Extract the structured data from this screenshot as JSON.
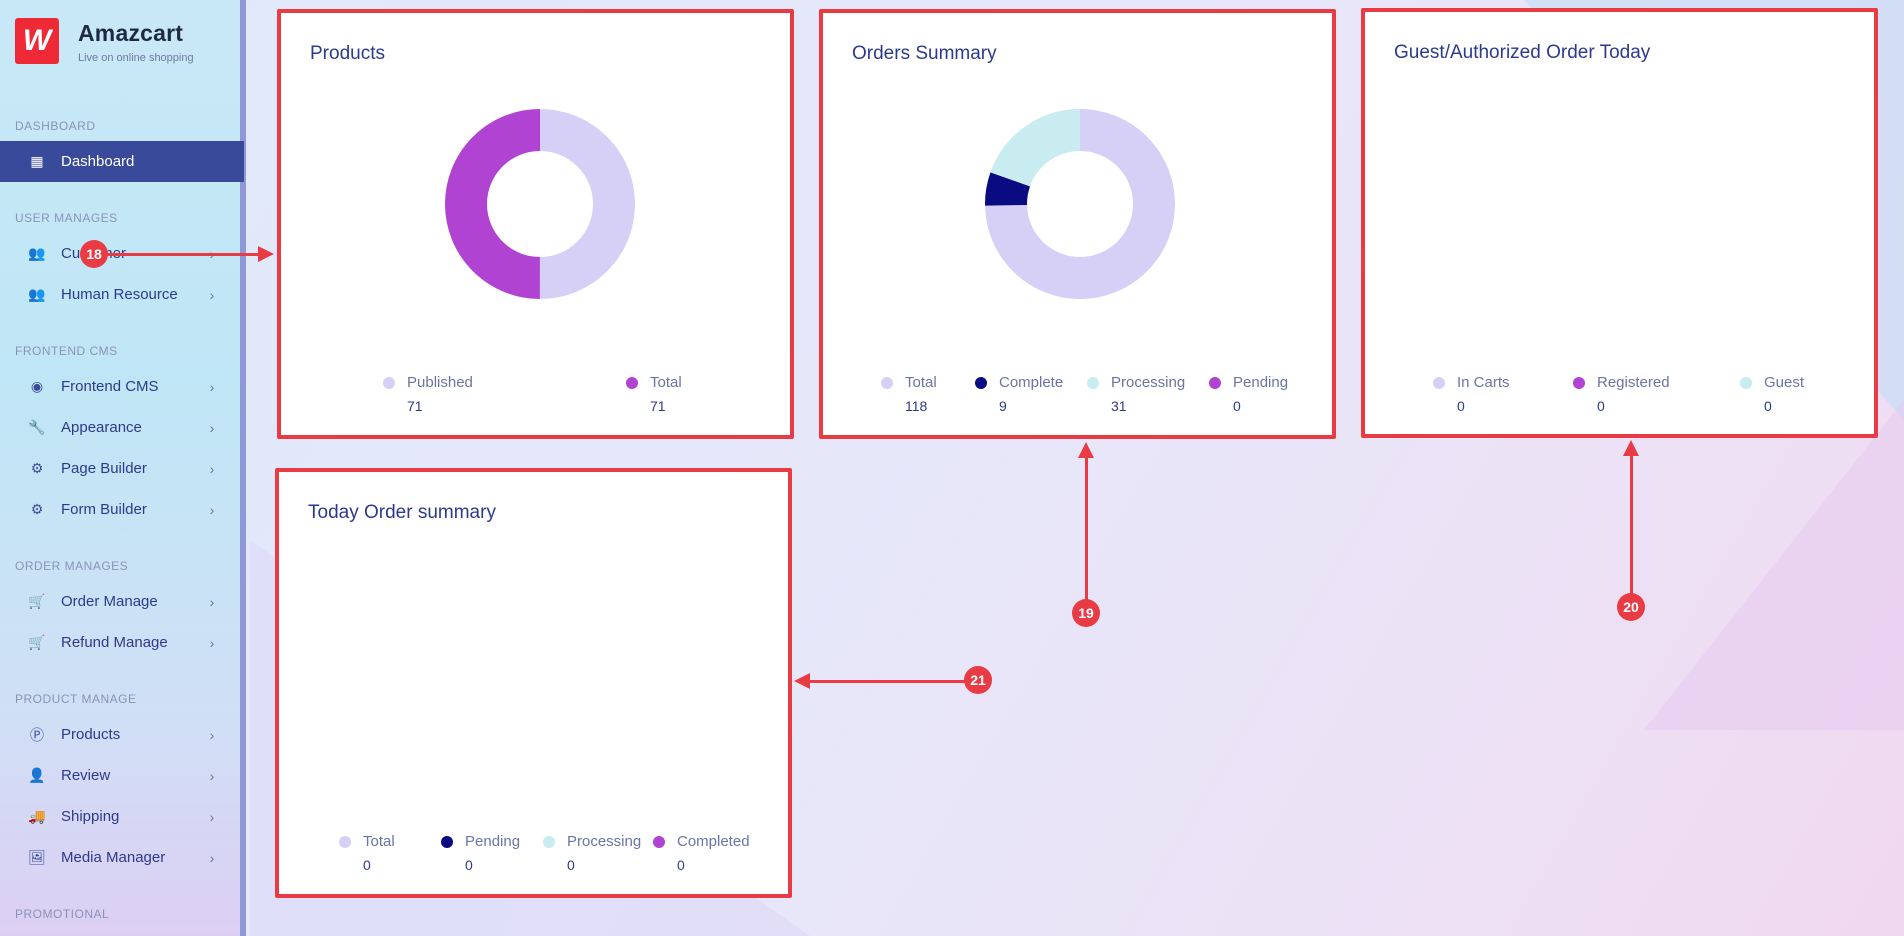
{
  "brand": {
    "title": "Amazcart",
    "subtitle": "Live on online shopping",
    "logo_glyph": "W"
  },
  "sidebar": {
    "sections": [
      {
        "label": "DASHBOARD"
      },
      {
        "label": "USER MANAGES"
      },
      {
        "label": "FRONTEND CMS"
      },
      {
        "label": "ORDER MANAGES"
      },
      {
        "label": "PRODUCT MANAGE"
      },
      {
        "label": "PROMOTIONAL"
      }
    ],
    "items": [
      {
        "label": "Dashboard",
        "icon": "grid-icon",
        "active": true
      },
      {
        "label": "Customer",
        "icon": "users-icon"
      },
      {
        "label": "Human Resource",
        "icon": "users-icon"
      },
      {
        "label": "Frontend CMS",
        "icon": "eye-icon"
      },
      {
        "label": "Appearance",
        "icon": "wrench-icon"
      },
      {
        "label": "Page Builder",
        "icon": "gears-icon"
      },
      {
        "label": "Form Builder",
        "icon": "gears-icon"
      },
      {
        "label": "Order Manage",
        "icon": "cart-icon"
      },
      {
        "label": "Refund Manage",
        "icon": "cart-icon"
      },
      {
        "label": "Products",
        "icon": "product-p-icon"
      },
      {
        "label": "Review",
        "icon": "user-icon"
      },
      {
        "label": "Shipping",
        "icon": "truck-icon"
      },
      {
        "label": "Media Manager",
        "icon": "image-icon"
      }
    ]
  },
  "cards": {
    "products": {
      "title": "Products",
      "legend": [
        {
          "name": "Published",
          "value": "71",
          "color": "#d6d0f7"
        },
        {
          "name": "Total",
          "value": "71",
          "color": "#b043d1"
        }
      ]
    },
    "orders_summary": {
      "title": "Orders Summary",
      "legend": [
        {
          "name": "Total",
          "value": "118",
          "color": "#d6d0f7"
        },
        {
          "name": "Complete",
          "value": "9",
          "color": "#0a0a82"
        },
        {
          "name": "Processing",
          "value": "31",
          "color": "#c8ecef"
        },
        {
          "name": "Pending",
          "value": "0",
          "color": "#b043d1"
        }
      ]
    },
    "guest_authorized": {
      "title": "Guest/Authorized Order Today",
      "legend": [
        {
          "name": "In Carts",
          "value": "0",
          "color": "#d6d0f7"
        },
        {
          "name": "Registered",
          "value": "0",
          "color": "#b043d1"
        },
        {
          "name": "Guest",
          "value": "0",
          "color": "#c8ecef"
        }
      ]
    },
    "today_order_summary": {
      "title": "Today Order summary",
      "legend": [
        {
          "name": "Total",
          "value": "0",
          "color": "#d6d0f7"
        },
        {
          "name": "Pending",
          "value": "0",
          "color": "#0a0a82"
        },
        {
          "name": "Processing",
          "value": "0",
          "color": "#c8ecef"
        },
        {
          "name": "Completed",
          "value": "0",
          "color": "#b043d1"
        }
      ]
    }
  },
  "chart_data": [
    {
      "type": "pie",
      "title": "Products",
      "categories": [
        "Published",
        "Total"
      ],
      "values": [
        71,
        71
      ],
      "colors": [
        "#d6d0f7",
        "#b043d1"
      ]
    },
    {
      "type": "pie",
      "title": "Orders Summary",
      "categories": [
        "Total",
        "Complete",
        "Processing",
        "Pending"
      ],
      "values": [
        118,
        9,
        31,
        0
      ],
      "colors": [
        "#d6d0f7",
        "#0a0a82",
        "#c8ecef",
        "#b043d1"
      ]
    },
    {
      "type": "pie",
      "title": "Guest/Authorized Order Today",
      "categories": [
        "In Carts",
        "Registered",
        "Guest"
      ],
      "values": [
        0,
        0,
        0
      ],
      "colors": [
        "#d6d0f7",
        "#b043d1",
        "#c8ecef"
      ]
    },
    {
      "type": "pie",
      "title": "Today Order summary",
      "categories": [
        "Total",
        "Pending",
        "Processing",
        "Completed"
      ],
      "values": [
        0,
        0,
        0,
        0
      ],
      "colors": [
        "#d6d0f7",
        "#0a0a82",
        "#c8ecef",
        "#b043d1"
      ]
    }
  ],
  "annotations": [
    {
      "number": "18"
    },
    {
      "number": "19"
    },
    {
      "number": "20"
    },
    {
      "number": "21"
    }
  ],
  "colors": {
    "accent_red": "#e83b44",
    "sidebar_active": "#3a4a9b",
    "text_primary": "#2d3a8c"
  }
}
